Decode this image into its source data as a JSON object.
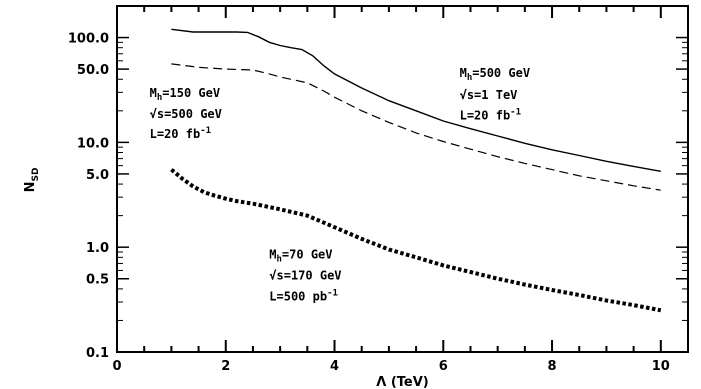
{
  "chart_data": {
    "type": "line",
    "title": "",
    "xlabel": "Λ (TeV)",
    "ylabel": "N_SD",
    "ylabel_main": "N",
    "ylabel_sub": "SD",
    "xlim": [
      0,
      10.5
    ],
    "ylim": [
      0.1,
      200
    ],
    "yscale": "log",
    "grid": false,
    "legend": "none",
    "x_ticks": [
      0,
      2,
      4,
      6,
      8,
      10
    ],
    "x_tick_labels": [
      "0",
      "2",
      "4",
      "6",
      "8",
      "10"
    ],
    "y_ticks": [
      0.1,
      0.5,
      1.0,
      5.0,
      10.0,
      50.0,
      100.0
    ],
    "y_tick_labels": [
      "0.1",
      "0.5",
      "1.0",
      "5.0",
      "10.0",
      "50.0",
      "100.0"
    ],
    "series": [
      {
        "style": "solid",
        "x": [
          1.0,
          1.4,
          1.8,
          2.2,
          2.4,
          2.6,
          2.8,
          3.0,
          3.2,
          3.4,
          3.6,
          3.8,
          4.0,
          4.5,
          5.0,
          5.5,
          6.0,
          6.5,
          7.0,
          7.5,
          8.0,
          8.5,
          9.0,
          9.5,
          10.0
        ],
        "y": [
          120,
          113,
          113,
          113,
          112,
          102,
          90,
          84,
          80,
          77,
          67,
          54,
          45,
          33,
          25,
          20,
          16,
          13.5,
          11.5,
          9.8,
          8.5,
          7.5,
          6.6,
          5.9,
          5.3
        ]
      },
      {
        "style": "dashed",
        "x": [
          1.0,
          1.5,
          2.0,
          2.5,
          2.8,
          3.0,
          3.2,
          3.5,
          3.8,
          4.0,
          4.5,
          5.0,
          5.5,
          6.0,
          6.5,
          7.0,
          7.5,
          8.0,
          8.5,
          9.0,
          9.5,
          10.0
        ],
        "y": [
          56,
          52,
          50,
          49,
          45,
          42,
          40,
          37,
          31,
          27,
          20,
          15.5,
          12.3,
          10.2,
          8.6,
          7.3,
          6.3,
          5.5,
          4.8,
          4.3,
          3.85,
          3.5
        ]
      },
      {
        "style": "dotted",
        "x": [
          1.0,
          1.2,
          1.4,
          1.6,
          1.8,
          2.0,
          2.2,
          2.5,
          3.0,
          3.5,
          4.0,
          4.5,
          5.0,
          5.5,
          6.0,
          6.5,
          7.0,
          7.5,
          8.0,
          8.5,
          9.0,
          9.5,
          10.0
        ],
        "y": [
          5.5,
          4.5,
          3.8,
          3.35,
          3.1,
          2.9,
          2.75,
          2.6,
          2.3,
          2.0,
          1.55,
          1.2,
          0.95,
          0.8,
          0.67,
          0.58,
          0.5,
          0.44,
          0.39,
          0.35,
          0.31,
          0.28,
          0.25
        ]
      }
    ],
    "annotations": [
      {
        "main": "M",
        "sub": "h",
        "rest": "=150 GeV",
        "x": 0.6,
        "y": 27
      },
      {
        "main": "√s=500 GeV",
        "sub": "",
        "rest": "",
        "x": 0.6,
        "y": 17
      },
      {
        "main": "L=20 fb",
        "sup": "-1",
        "rest": "",
        "x": 0.6,
        "y": 11
      },
      {
        "main": "M",
        "sub": "h",
        "rest": "=500 GeV",
        "x": 6.3,
        "y": 42
      },
      {
        "main": "√s=1 TeV",
        "sub": "",
        "rest": "",
        "x": 6.3,
        "y": 26
      },
      {
        "main": "L=20 fb",
        "sup": "-1",
        "rest": "",
        "x": 6.3,
        "y": 16.5
      },
      {
        "main": "M",
        "sub": "h",
        "rest": "=70 GeV",
        "x": 2.8,
        "y": 0.78
      },
      {
        "main": "√s=170 GeV",
        "sub": "",
        "rest": "",
        "x": 2.8,
        "y": 0.49
      },
      {
        "main": "L=500 pb",
        "sup": "-1",
        "rest": "",
        "x": 2.8,
        "y": 0.31
      }
    ]
  }
}
